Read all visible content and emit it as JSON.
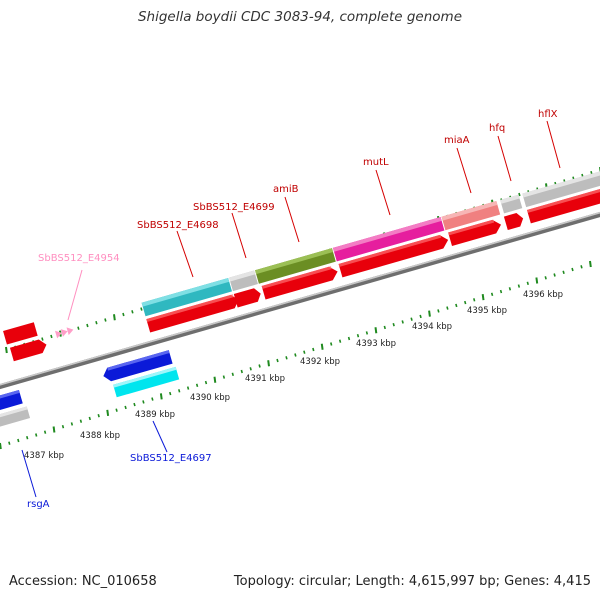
{
  "title": "Shigella boydii CDC 3083-94, complete genome",
  "footer": {
    "accession": "Accession: NC_010658",
    "summary": "Topology: circular; Length: 4,615,997 bp; Genes: 4,415"
  },
  "scale": [
    {
      "label": "4387 kbp"
    },
    {
      "label": "4388 kbp"
    },
    {
      "label": "4389 kbp"
    },
    {
      "label": "4390 kbp"
    },
    {
      "label": "4391 kbp"
    },
    {
      "label": "4392 kbp"
    },
    {
      "label": "4393 kbp"
    },
    {
      "label": "4394 kbp"
    },
    {
      "label": "4395 kbp"
    },
    {
      "label": "4396 kbp"
    }
  ],
  "features": {
    "cds_forward_color": "#e8000b",
    "cds_reverse_color": "#0b1ad8",
    "gene_colors": {
      "SbBS512_E4698": "#2fb8c0",
      "amiB": "#6b8e23",
      "mutL": "#e61e9e",
      "miaA": "#f08080",
      "neutral": "#bdbdbd",
      "SbBS512_E4697": "#00e5ee",
      "SbBS512_E4954": "#ff9ec8"
    }
  },
  "labels": {
    "SbBS512_E4698": "SbBS512_E4698",
    "SbBS512_E4699": "SbBS512_E4699",
    "amiB": "amiB",
    "mutL": "mutL",
    "miaA": "miaA",
    "hfq": "hfq",
    "hflX": "hflX",
    "SbBS512_E4954": "SbBS512_E4954",
    "SbBS512_E4697": "SbBS512_E4697",
    "rsgA": "rsgA"
  }
}
